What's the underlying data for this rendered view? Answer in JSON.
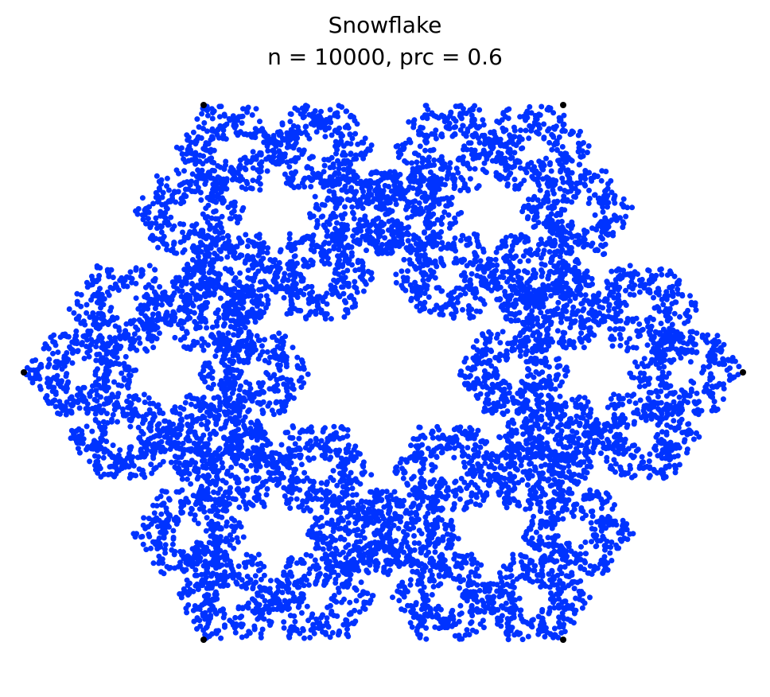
{
  "chart_data": {
    "type": "scatter",
    "title": "Snowflake",
    "subtitle": "n = 10000, prc = 0.6",
    "axes_visible": false,
    "grid": false,
    "n": 10000,
    "prc": 0.6,
    "point_color": "#0033ff",
    "vertex_color": "#000000",
    "vertices": [
      {
        "x": 1.0,
        "y": 0.0
      },
      {
        "x": 0.5,
        "y": 0.866
      },
      {
        "x": -0.5,
        "y": 0.866
      },
      {
        "x": -1.0,
        "y": 0.0
      },
      {
        "x": -0.5,
        "y": -0.866
      },
      {
        "x": 0.5,
        "y": -0.866
      }
    ]
  }
}
